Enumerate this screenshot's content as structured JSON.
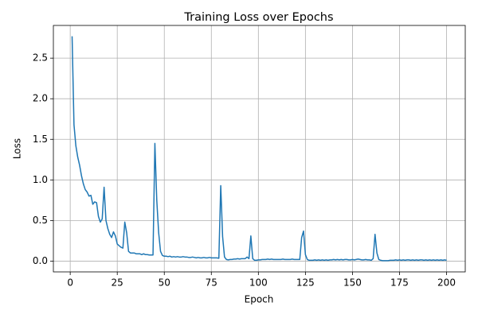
{
  "chart_data": {
    "type": "line",
    "title": "Training Loss over Epochs",
    "xlabel": "Epoch",
    "ylabel": "Loss",
    "x": [
      1,
      2,
      3,
      4,
      5,
      6,
      7,
      8,
      9,
      10,
      11,
      12,
      13,
      14,
      15,
      16,
      17,
      18,
      19,
      20,
      21,
      22,
      23,
      24,
      25,
      26,
      27,
      28,
      29,
      30,
      31,
      32,
      33,
      34,
      35,
      36,
      37,
      38,
      39,
      40,
      41,
      42,
      43,
      44,
      45,
      46,
      47,
      48,
      49,
      50,
      51,
      52,
      53,
      54,
      55,
      56,
      57,
      58,
      59,
      60,
      61,
      62,
      63,
      64,
      65,
      66,
      67,
      68,
      69,
      70,
      71,
      72,
      73,
      74,
      75,
      76,
      77,
      78,
      79,
      80,
      81,
      82,
      83,
      84,
      85,
      86,
      87,
      88,
      89,
      90,
      91,
      92,
      93,
      94,
      95,
      96,
      97,
      98,
      99,
      100,
      101,
      102,
      103,
      104,
      105,
      106,
      107,
      108,
      109,
      110,
      111,
      112,
      113,
      114,
      115,
      116,
      117,
      118,
      119,
      120,
      121,
      122,
      123,
      124,
      125,
      126,
      127,
      128,
      129,
      130,
      131,
      132,
      133,
      134,
      135,
      136,
      137,
      138,
      139,
      140,
      141,
      142,
      143,
      144,
      145,
      146,
      147,
      148,
      149,
      150,
      151,
      152,
      153,
      154,
      155,
      156,
      157,
      158,
      159,
      160,
      161,
      162,
      163,
      164,
      165,
      166,
      167,
      168,
      169,
      170,
      171,
      172,
      173,
      174,
      175,
      176,
      177,
      178,
      179,
      180,
      181,
      182,
      183,
      184,
      185,
      186,
      187,
      188,
      189,
      190,
      191,
      192,
      193,
      194,
      195,
      196,
      197,
      198,
      199,
      200
    ],
    "series": [
      {
        "color": "#1f77b4",
        "values": [
          2.77,
          1.68,
          1.42,
          1.28,
          1.18,
          1.05,
          0.95,
          0.88,
          0.85,
          0.8,
          0.81,
          0.7,
          0.73,
          0.72,
          0.55,
          0.48,
          0.52,
          0.91,
          0.5,
          0.4,
          0.33,
          0.29,
          0.36,
          0.31,
          0.21,
          0.19,
          0.17,
          0.16,
          0.48,
          0.35,
          0.12,
          0.1,
          0.1,
          0.1,
          0.09,
          0.09,
          0.09,
          0.08,
          0.09,
          0.08,
          0.08,
          0.075,
          0.075,
          0.075,
          1.45,
          0.75,
          0.35,
          0.12,
          0.07,
          0.06,
          0.06,
          0.055,
          0.06,
          0.05,
          0.055,
          0.05,
          0.055,
          0.05,
          0.05,
          0.055,
          0.05,
          0.05,
          0.045,
          0.045,
          0.05,
          0.045,
          0.04,
          0.045,
          0.04,
          0.04,
          0.045,
          0.04,
          0.04,
          0.045,
          0.04,
          0.04,
          0.04,
          0.04,
          0.035,
          0.93,
          0.3,
          0.05,
          0.02,
          0.015,
          0.02,
          0.02,
          0.025,
          0.025,
          0.03,
          0.025,
          0.03,
          0.03,
          0.03,
          0.05,
          0.03,
          0.31,
          0.03,
          0.01,
          0.01,
          0.015,
          0.015,
          0.02,
          0.02,
          0.02,
          0.025,
          0.02,
          0.025,
          0.02,
          0.02,
          0.02,
          0.02,
          0.02,
          0.025,
          0.02,
          0.02,
          0.02,
          0.02,
          0.025,
          0.02,
          0.02,
          0.02,
          0.02,
          0.29,
          0.37,
          0.08,
          0.02,
          0.01,
          0.01,
          0.01,
          0.015,
          0.01,
          0.015,
          0.01,
          0.015,
          0.01,
          0.015,
          0.01,
          0.015,
          0.015,
          0.02,
          0.015,
          0.02,
          0.015,
          0.02,
          0.015,
          0.02,
          0.02,
          0.015,
          0.015,
          0.02,
          0.015,
          0.02,
          0.025,
          0.02,
          0.015,
          0.015,
          0.02,
          0.015,
          0.015,
          0.01,
          0.03,
          0.33,
          0.1,
          0.02,
          0.01,
          0.005,
          0.005,
          0.005,
          0.005,
          0.01,
          0.01,
          0.01,
          0.015,
          0.01,
          0.015,
          0.01,
          0.015,
          0.01,
          0.015,
          0.015,
          0.01,
          0.015,
          0.01,
          0.015,
          0.01,
          0.015,
          0.015,
          0.01,
          0.015,
          0.01,
          0.015,
          0.01,
          0.015,
          0.01,
          0.015,
          0.01,
          0.015,
          0.01,
          0.015,
          0.01
        ]
      }
    ],
    "xlim": [
      -8.95,
      209.95
    ],
    "ylim": [
      -0.133,
      2.903
    ],
    "xticks": [
      0,
      25,
      50,
      75,
      100,
      125,
      150,
      175,
      200
    ],
    "yticks": [
      {
        "value": 0,
        "label": "0.0"
      },
      {
        "value": 0.5,
        "label": "0.5"
      },
      {
        "value": 1,
        "label": "1.0"
      },
      {
        "value": 1.5,
        "label": "1.5"
      },
      {
        "value": 2,
        "label": "2.0"
      },
      {
        "value": 2.5,
        "label": "2.5"
      }
    ],
    "grid": true
  }
}
